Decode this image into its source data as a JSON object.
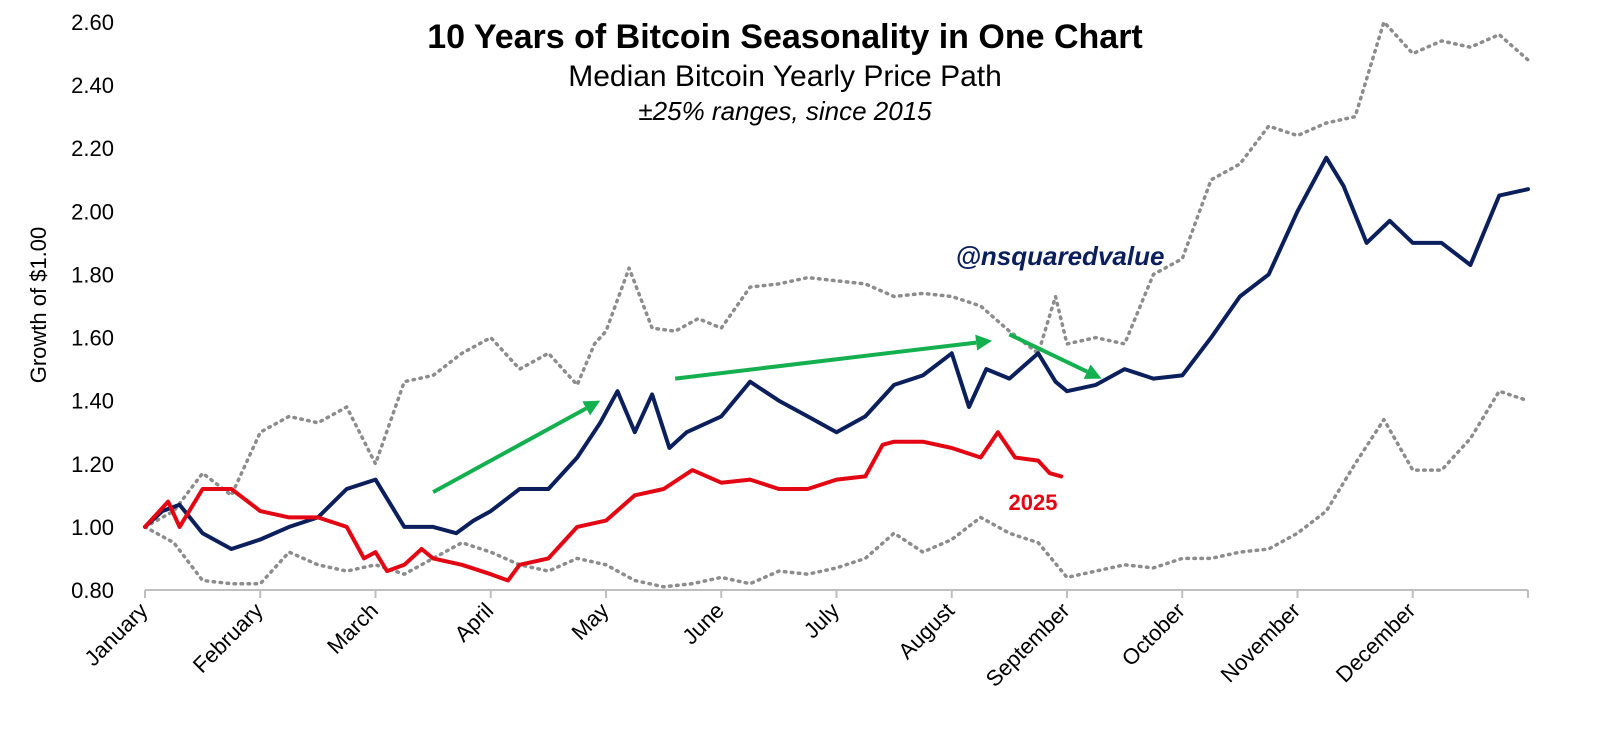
{
  "chart_data": {
    "type": "line",
    "title": "10 Years of Bitcoin Seasonality in One Chart",
    "subtitle": "Median Bitcoin Yearly Price Path",
    "note": "±25% ranges, since 2015",
    "ylabel": "Growth of $1.00",
    "xlabel": "",
    "ylim": [
      0.8,
      2.6
    ],
    "y_ticks": [
      "0.80",
      "1.00",
      "1.20",
      "1.40",
      "1.60",
      "1.80",
      "2.00",
      "2.20",
      "2.40",
      "2.60"
    ],
    "x_domain": [
      0,
      12
    ],
    "months": [
      "January",
      "February",
      "March",
      "April",
      "May",
      "June",
      "July",
      "August",
      "September",
      "October",
      "November",
      "December"
    ],
    "grid": false,
    "legend": "none",
    "colors": {
      "median": "#0b1f5c",
      "y2025": "#e30613",
      "range": "#8c8c8c",
      "arrow": "#14b050",
      "annotation": "#0b1f5c"
    },
    "annotations": {
      "handle": "@nsquaredvalue",
      "series_label": "2025"
    },
    "arrows": [
      {
        "from": [
          2.5,
          1.11
        ],
        "to": [
          3.95,
          1.4
        ]
      },
      {
        "from": [
          4.6,
          1.47
        ],
        "to": [
          7.35,
          1.59
        ]
      },
      {
        "from": [
          7.5,
          1.61
        ],
        "to": [
          8.3,
          1.47
        ]
      }
    ],
    "series": [
      {
        "key": "upper",
        "x": [
          0,
          0.25,
          0.5,
          0.75,
          1.0,
          1.25,
          1.5,
          1.75,
          2.0,
          2.25,
          2.5,
          2.75,
          3.0,
          3.25,
          3.5,
          3.75,
          3.9,
          4.0,
          4.2,
          4.4,
          4.6,
          4.8,
          5.0,
          5.25,
          5.5,
          5.75,
          6.0,
          6.25,
          6.5,
          6.75,
          7.0,
          7.25,
          7.5,
          7.75,
          7.9,
          8.0,
          8.25,
          8.5,
          8.75,
          9.0,
          9.25,
          9.5,
          9.75,
          10.0,
          10.25,
          10.5,
          10.75,
          11.0,
          11.25,
          11.5,
          11.75,
          12.0
        ],
        "values": [
          1.0,
          1.05,
          1.17,
          1.1,
          1.3,
          1.35,
          1.33,
          1.38,
          1.2,
          1.46,
          1.48,
          1.55,
          1.6,
          1.5,
          1.55,
          1.45,
          1.58,
          1.62,
          1.82,
          1.63,
          1.62,
          1.66,
          1.63,
          1.76,
          1.77,
          1.79,
          1.78,
          1.77,
          1.73,
          1.74,
          1.73,
          1.7,
          1.62,
          1.55,
          1.73,
          1.58,
          1.6,
          1.58,
          1.8,
          1.85,
          2.1,
          2.15,
          2.27,
          2.24,
          2.28,
          2.3,
          2.6,
          2.5,
          2.54,
          2.52,
          2.56,
          2.48
        ]
      },
      {
        "key": "lower",
        "x": [
          0,
          0.25,
          0.5,
          0.75,
          1.0,
          1.25,
          1.5,
          1.75,
          2.0,
          2.25,
          2.5,
          2.75,
          3.0,
          3.25,
          3.5,
          3.75,
          4.0,
          4.25,
          4.5,
          4.75,
          5.0,
          5.25,
          5.5,
          5.75,
          6.0,
          6.25,
          6.5,
          6.75,
          7.0,
          7.25,
          7.5,
          7.75,
          8.0,
          8.25,
          8.5,
          8.75,
          9.0,
          9.25,
          9.5,
          9.75,
          10.0,
          10.25,
          10.5,
          10.75,
          11.0,
          11.25,
          11.5,
          11.75,
          12.0
        ],
        "values": [
          1.0,
          0.95,
          0.83,
          0.82,
          0.82,
          0.92,
          0.88,
          0.86,
          0.88,
          0.85,
          0.9,
          0.95,
          0.92,
          0.88,
          0.86,
          0.9,
          0.88,
          0.83,
          0.81,
          0.82,
          0.84,
          0.82,
          0.86,
          0.85,
          0.87,
          0.9,
          0.98,
          0.92,
          0.96,
          1.03,
          0.98,
          0.95,
          0.84,
          0.86,
          0.88,
          0.87,
          0.9,
          0.9,
          0.92,
          0.93,
          0.98,
          1.05,
          1.2,
          1.34,
          1.18,
          1.18,
          1.28,
          1.43,
          1.4
        ]
      },
      {
        "key": "median",
        "x": [
          0,
          0.15,
          0.3,
          0.5,
          0.75,
          1.0,
          1.25,
          1.5,
          1.75,
          2.0,
          2.25,
          2.5,
          2.7,
          2.85,
          3.0,
          3.25,
          3.5,
          3.75,
          3.95,
          4.1,
          4.25,
          4.4,
          4.55,
          4.7,
          5.0,
          5.25,
          5.5,
          5.75,
          6.0,
          6.25,
          6.5,
          6.75,
          7.0,
          7.15,
          7.3,
          7.5,
          7.75,
          7.9,
          8.0,
          8.25,
          8.5,
          8.75,
          9.0,
          9.25,
          9.5,
          9.75,
          10.0,
          10.25,
          10.4,
          10.6,
          10.8,
          11.0,
          11.25,
          11.5,
          11.75,
          12.0
        ],
        "values": [
          1.0,
          1.05,
          1.07,
          0.98,
          0.93,
          0.96,
          1.0,
          1.03,
          1.12,
          1.15,
          1.0,
          1.0,
          0.98,
          1.02,
          1.05,
          1.12,
          1.12,
          1.22,
          1.33,
          1.43,
          1.3,
          1.42,
          1.25,
          1.3,
          1.35,
          1.46,
          1.4,
          1.35,
          1.3,
          1.35,
          1.45,
          1.48,
          1.55,
          1.38,
          1.5,
          1.47,
          1.55,
          1.46,
          1.43,
          1.45,
          1.5,
          1.47,
          1.48,
          1.6,
          1.73,
          1.8,
          2.0,
          2.17,
          2.08,
          1.9,
          1.97,
          1.9,
          1.9,
          1.83,
          2.05,
          2.07
        ]
      },
      {
        "key": "2025",
        "name": "2025",
        "x": [
          0,
          0.1,
          0.2,
          0.3,
          0.5,
          0.75,
          1.0,
          1.25,
          1.5,
          1.75,
          1.9,
          2.0,
          2.1,
          2.25,
          2.4,
          2.5,
          2.75,
          3.0,
          3.15,
          3.25,
          3.5,
          3.75,
          4.0,
          4.25,
          4.5,
          4.75,
          5.0,
          5.25,
          5.5,
          5.75,
          6.0,
          6.25,
          6.4,
          6.5,
          6.75,
          7.0,
          7.25,
          7.4,
          7.55,
          7.75,
          7.85,
          7.95
        ],
        "values": [
          1.0,
          1.04,
          1.08,
          1.0,
          1.12,
          1.12,
          1.05,
          1.03,
          1.03,
          1.0,
          0.9,
          0.92,
          0.86,
          0.88,
          0.93,
          0.9,
          0.88,
          0.85,
          0.83,
          0.88,
          0.9,
          1.0,
          1.02,
          1.1,
          1.12,
          1.18,
          1.14,
          1.15,
          1.12,
          1.12,
          1.15,
          1.16,
          1.26,
          1.27,
          1.27,
          1.25,
          1.22,
          1.3,
          1.22,
          1.21,
          1.17,
          1.16
        ]
      }
    ]
  }
}
